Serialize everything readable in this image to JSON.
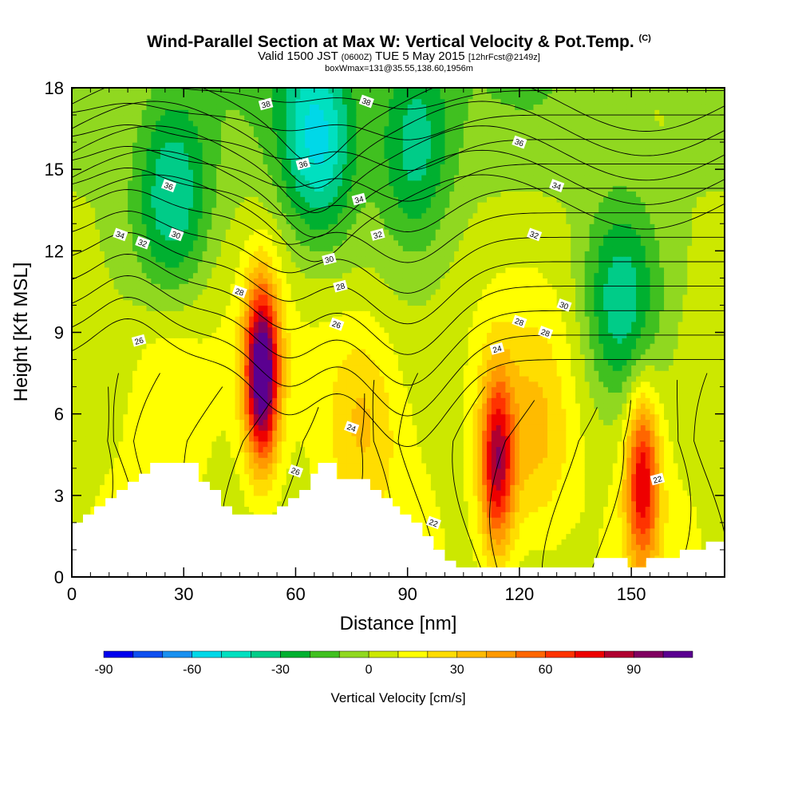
{
  "header": {
    "title": "Wind-Parallel Section at Max W: Vertical Velocity & Pot.Temp.",
    "copyright_mark": "(C)",
    "valid_prefix": "Valid 1500 JST",
    "valid_utc": "(0600Z)",
    "valid_date": "TUE 5 May 2015",
    "forecast_info": "[12hrFcst@2149z]",
    "box_info": "boxWmax=131@35.55,138.60,1956m"
  },
  "chart_data": {
    "type": "heatmap",
    "xlabel": "Distance [nm]",
    "ylabel": "Height [Kft MSL]",
    "xlim": [
      0,
      175
    ],
    "ylim": [
      0,
      18
    ],
    "x_ticks": [
      0,
      30,
      60,
      90,
      120,
      150
    ],
    "y_ticks": [
      0,
      3,
      6,
      9,
      12,
      15,
      18
    ],
    "colorbar": {
      "title": "Vertical Velocity [cm/s]",
      "ticks": [
        -90,
        -60,
        -30,
        0,
        30,
        60,
        90
      ],
      "min": -90,
      "max": 110,
      "step": 10,
      "colors": [
        "#0000ee",
        "#1050f0",
        "#1a90f0",
        "#00d8e8",
        "#00e0c0",
        "#00cc88",
        "#00b030",
        "#40c020",
        "#90d820",
        "#cce800",
        "#ffff00",
        "#ffdd00",
        "#ffbb00",
        "#ff9900",
        "#ff6600",
        "#ff3300",
        "#ee0000",
        "#b00030",
        "#800060",
        "#5a0090"
      ]
    },
    "updrafts": [
      {
        "x": 51,
        "z": 7.5,
        "peak_w": 110
      },
      {
        "x": 114,
        "z": 4.2,
        "peak_w": 75
      },
      {
        "x": 153,
        "z": 3.6,
        "peak_w": 70
      },
      {
        "x": 78,
        "z": 6.0,
        "peak_w": 25
      },
      {
        "x": 25,
        "z": 7.0,
        "peak_w": 15
      },
      {
        "x": 124,
        "z": 5.0,
        "peak_w": 25
      }
    ],
    "downdrafts": [
      {
        "x": 66,
        "z": 16.0,
        "peak_w": -50
      },
      {
        "x": 27,
        "z": 14.0,
        "peak_w": -40
      },
      {
        "x": 147,
        "z": 10.0,
        "peak_w": -40
      },
      {
        "x": 92,
        "z": 16.0,
        "peak_w": -35
      }
    ],
    "terrain": [
      [
        0,
        2.0
      ],
      [
        3,
        2.0
      ],
      [
        3,
        2.3
      ],
      [
        6,
        2.3
      ],
      [
        6,
        2.6
      ],
      [
        9,
        2.6
      ],
      [
        9,
        2.9
      ],
      [
        12,
        2.9
      ],
      [
        12,
        3.2
      ],
      [
        15,
        3.2
      ],
      [
        15,
        3.5
      ],
      [
        18,
        3.5
      ],
      [
        18,
        3.8
      ],
      [
        21,
        3.8
      ],
      [
        21,
        4.2
      ],
      [
        34,
        4.2
      ],
      [
        34,
        3.5
      ],
      [
        37,
        3.5
      ],
      [
        37,
        3.2
      ],
      [
        40,
        3.2
      ],
      [
        40,
        2.6
      ],
      [
        43,
        2.6
      ],
      [
        43,
        2.3
      ],
      [
        55,
        2.3
      ],
      [
        55,
        2.6
      ],
      [
        58,
        2.6
      ],
      [
        58,
        2.9
      ],
      [
        61,
        2.9
      ],
      [
        61,
        3.2
      ],
      [
        64,
        3.2
      ],
      [
        64,
        3.8
      ],
      [
        66,
        3.8
      ],
      [
        66,
        4.2
      ],
      [
        71,
        4.2
      ],
      [
        71,
        3.6
      ],
      [
        80,
        3.6
      ],
      [
        80,
        3.2
      ],
      [
        83,
        3.2
      ],
      [
        83,
        2.9
      ],
      [
        86,
        2.9
      ],
      [
        86,
        2.6
      ],
      [
        88,
        2.6
      ],
      [
        88,
        2.3
      ],
      [
        91,
        2.3
      ],
      [
        91,
        2.0
      ],
      [
        94,
        2.0
      ],
      [
        94,
        1.5
      ],
      [
        97,
        1.5
      ],
      [
        97,
        1.0
      ],
      [
        100,
        1.0
      ],
      [
        100,
        0.6
      ],
      [
        103,
        0.6
      ],
      [
        103,
        0.35
      ],
      [
        140,
        0.35
      ],
      [
        140,
        0.7
      ],
      [
        149,
        0.7
      ],
      [
        149,
        0.35
      ],
      [
        154,
        0.35
      ],
      [
        154,
        0.7
      ],
      [
        163,
        0.7
      ],
      [
        163,
        1.0
      ],
      [
        170,
        1.0
      ],
      [
        170,
        1.3
      ],
      [
        175,
        1.3
      ]
    ],
    "theta_labels": [
      {
        "text": "38",
        "x": 52,
        "z": 17.4
      },
      {
        "text": "38",
        "x": 79,
        "z": 17.5
      },
      {
        "text": "36",
        "x": 26,
        "z": 14.4
      },
      {
        "text": "36",
        "x": 62,
        "z": 15.2
      },
      {
        "text": "36",
        "x": 120,
        "z": 16.0
      },
      {
        "text": "34",
        "x": 13,
        "z": 12.6
      },
      {
        "text": "34",
        "x": 77,
        "z": 13.9
      },
      {
        "text": "34",
        "x": 130,
        "z": 14.4
      },
      {
        "text": "32",
        "x": 19,
        "z": 12.3
      },
      {
        "text": "32",
        "x": 82,
        "z": 12.6
      },
      {
        "text": "32",
        "x": 124,
        "z": 12.6
      },
      {
        "text": "30",
        "x": 28,
        "z": 12.6
      },
      {
        "text": "30",
        "x": 69,
        "z": 11.7
      },
      {
        "text": "30",
        "x": 132,
        "z": 10.0
      },
      {
        "text": "28",
        "x": 45,
        "z": 10.5
      },
      {
        "text": "28",
        "x": 72,
        "z": 10.7
      },
      {
        "text": "28",
        "x": 120,
        "z": 9.4
      },
      {
        "text": "28",
        "x": 127,
        "z": 9.0
      },
      {
        "text": "26",
        "x": 18,
        "z": 8.7
      },
      {
        "text": "26",
        "x": 71,
        "z": 9.3
      },
      {
        "text": "26",
        "x": 60,
        "z": 3.9
      },
      {
        "text": "24",
        "x": 114,
        "z": 8.4
      },
      {
        "text": "24",
        "x": 75,
        "z": 5.5
      },
      {
        "text": "22",
        "x": 97,
        "z": 2.0
      },
      {
        "text": "22",
        "x": 157,
        "z": 3.6
      }
    ]
  }
}
